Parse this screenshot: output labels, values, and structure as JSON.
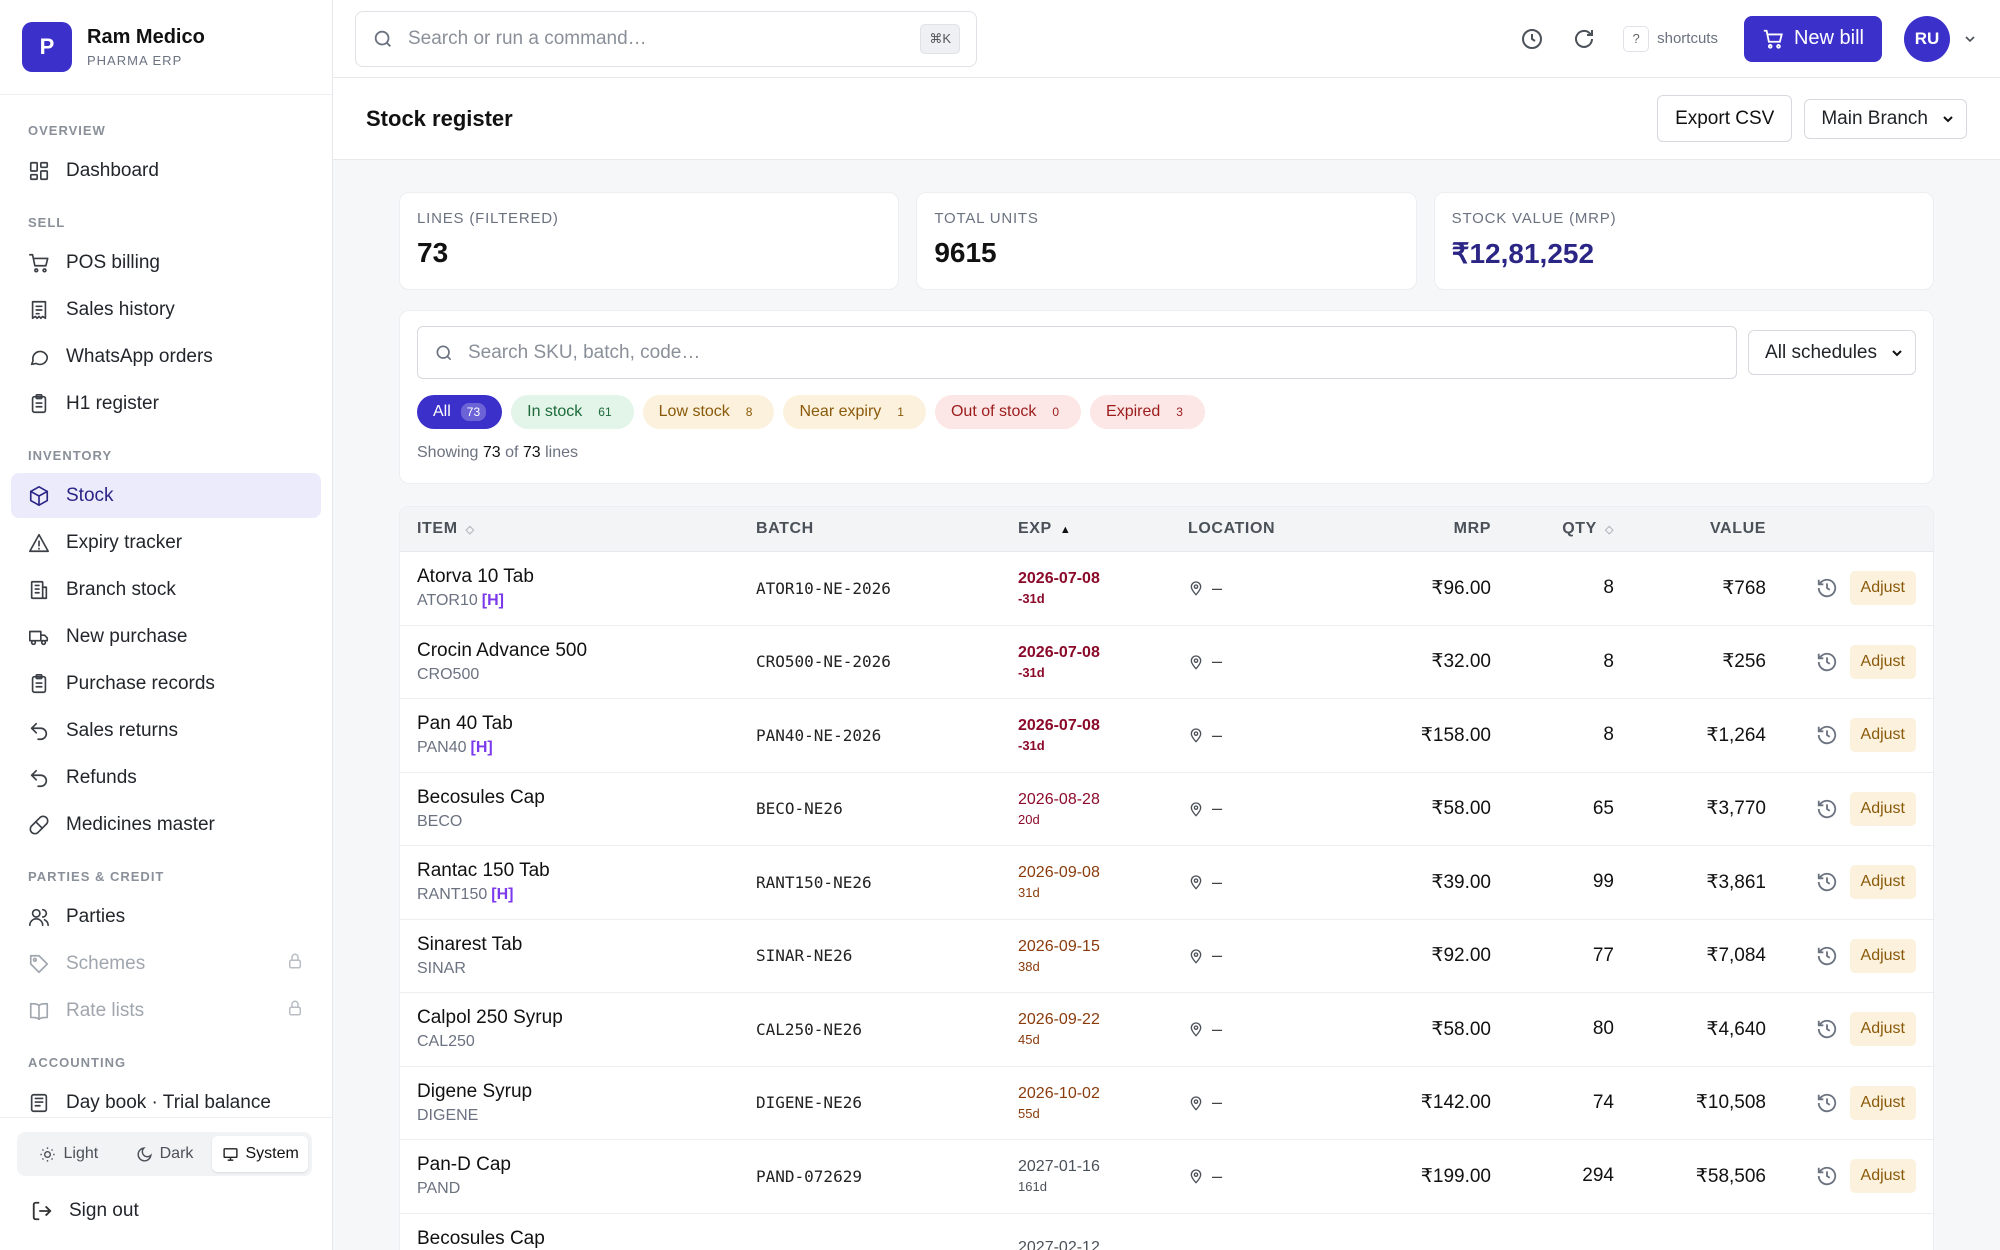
{
  "brand": {
    "logo_letter": "P",
    "name": "Ram Medico",
    "sub": "PHARMA ERP"
  },
  "nav": {
    "sections": [
      {
        "title": "OVERVIEW",
        "items": [
          {
            "label": "Dashboard",
            "icon": "dashboard-icon"
          }
        ]
      },
      {
        "title": "SELL",
        "items": [
          {
            "label": "POS billing",
            "icon": "cart-icon"
          },
          {
            "label": "Sales history",
            "icon": "receipt-icon"
          },
          {
            "label": "WhatsApp orders",
            "icon": "chat-icon"
          },
          {
            "label": "H1 register",
            "icon": "clipboard-icon"
          }
        ]
      },
      {
        "title": "INVENTORY",
        "items": [
          {
            "label": "Stock",
            "icon": "box-icon",
            "active": true
          },
          {
            "label": "Expiry tracker",
            "icon": "warning-icon"
          },
          {
            "label": "Branch stock",
            "icon": "building-icon"
          },
          {
            "label": "New purchase",
            "icon": "truck-icon"
          },
          {
            "label": "Purchase records",
            "icon": "clipboard-icon"
          },
          {
            "label": "Sales returns",
            "icon": "undo-icon"
          },
          {
            "label": "Refunds",
            "icon": "undo-icon"
          },
          {
            "label": "Medicines master",
            "icon": "pill-icon"
          }
        ]
      },
      {
        "title": "PARTIES & CREDIT",
        "items": [
          {
            "label": "Parties",
            "icon": "users-icon"
          },
          {
            "label": "Schemes",
            "icon": "tag-icon",
            "locked": true
          },
          {
            "label": "Rate lists",
            "icon": "book-icon",
            "locked": true
          }
        ]
      },
      {
        "title": "ACCOUNTING",
        "items": [
          {
            "label": "Day book · Trial balance",
            "icon": "ledger-icon"
          }
        ]
      }
    ]
  },
  "theme": {
    "light": "Light",
    "dark": "Dark",
    "system": "System"
  },
  "signout": "Sign out",
  "topbar": {
    "search_placeholder": "Search or run a command…",
    "kbd": "⌘K",
    "shortcut_key": "?",
    "shortcut_label": "shortcuts",
    "new_bill": "New bill",
    "avatar": "RU"
  },
  "page": {
    "title": "Stock register",
    "export": "Export CSV",
    "branch": "Main Branch"
  },
  "stats": [
    {
      "label": "LINES (FILTERED)",
      "value": "73"
    },
    {
      "label": "TOTAL UNITS",
      "value": "9615"
    },
    {
      "label": "STOCK VALUE (MRP)",
      "value": "₹12,81,252"
    }
  ],
  "filters": {
    "search_placeholder": "Search SKU, batch, code…",
    "schedule": "All schedules",
    "chips": [
      {
        "label": "All",
        "count": "73"
      },
      {
        "label": "In stock",
        "count": "61"
      },
      {
        "label": "Low stock",
        "count": "8"
      },
      {
        "label": "Near expiry",
        "count": "1"
      },
      {
        "label": "Out of stock",
        "count": "0"
      },
      {
        "label": "Expired",
        "count": "3"
      }
    ],
    "showing_prefix": "Showing",
    "showing_count": "73",
    "showing_of": "of",
    "showing_total": "73",
    "showing_suffix": "lines"
  },
  "table": {
    "headers": {
      "item": "ITEM",
      "batch": "BATCH",
      "exp": "EXP",
      "location": "LOCATION",
      "mrp": "MRP",
      "qty": "QTY",
      "value": "VALUE"
    },
    "adjust_label": "Adjust",
    "rows": [
      {
        "name": "Atorva 10 Tab",
        "code": "ATOR10",
        "h": "[H]",
        "batch": "ATOR10-NE-2026",
        "exp": "2026-07-08",
        "days": "-31d",
        "tone": "red",
        "loc": "–",
        "mrp": "₹96.00",
        "qty": "8",
        "value": "₹768"
      },
      {
        "name": "Crocin Advance 500",
        "code": "CRO500",
        "h": "",
        "batch": "CRO500-NE-2026",
        "exp": "2026-07-08",
        "days": "-31d",
        "tone": "red",
        "loc": "–",
        "mrp": "₹32.00",
        "qty": "8",
        "value": "₹256"
      },
      {
        "name": "Pan 40 Tab",
        "code": "PAN40",
        "h": "[H]",
        "batch": "PAN40-NE-2026",
        "exp": "2026-07-08",
        "days": "-31d",
        "tone": "red",
        "loc": "–",
        "mrp": "₹158.00",
        "qty": "8",
        "value": "₹1,264"
      },
      {
        "name": "Becosules Cap",
        "code": "BECO",
        "h": "",
        "batch": "BECO-NE26",
        "exp": "2026-08-28",
        "days": "20d",
        "tone": "red-light",
        "loc": "–",
        "mrp": "₹58.00",
        "qty": "65",
        "value": "₹3,770"
      },
      {
        "name": "Rantac 150 Tab",
        "code": "RANT150",
        "h": "[H]",
        "batch": "RANT150-NE26",
        "exp": "2026-09-08",
        "days": "31d",
        "tone": "amber",
        "loc": "–",
        "mrp": "₹39.00",
        "qty": "99",
        "value": "₹3,861"
      },
      {
        "name": "Sinarest Tab",
        "code": "SINAR",
        "h": "",
        "batch": "SINAR-NE26",
        "exp": "2026-09-15",
        "days": "38d",
        "tone": "amber",
        "loc": "–",
        "mrp": "₹92.00",
        "qty": "77",
        "value": "₹7,084"
      },
      {
        "name": "Calpol 250 Syrup",
        "code": "CAL250",
        "h": "",
        "batch": "CAL250-NE26",
        "exp": "2026-09-22",
        "days": "45d",
        "tone": "amber",
        "loc": "–",
        "mrp": "₹58.00",
        "qty": "80",
        "value": "₹4,640"
      },
      {
        "name": "Digene Syrup",
        "code": "DIGENE",
        "h": "",
        "batch": "DIGENE-NE26",
        "exp": "2026-10-02",
        "days": "55d",
        "tone": "amber",
        "loc": "–",
        "mrp": "₹142.00",
        "qty": "74",
        "value": "₹10,508"
      },
      {
        "name": "Pan-D Cap",
        "code": "PAND",
        "h": "",
        "batch": "PAND-072629",
        "exp": "2027-01-16",
        "days": "161d",
        "tone": "normal",
        "loc": "–",
        "mrp": "₹199.00",
        "qty": "294",
        "value": "₹58,506"
      },
      {
        "name": "Becosules Cap",
        "code": "",
        "h": "",
        "batch": "",
        "exp": "2027-02-12",
        "days": "",
        "tone": "normal",
        "loc": "",
        "mrp": "",
        "qty": "",
        "value": ""
      }
    ]
  },
  "colors": {
    "accent": "#3b30c9",
    "active_bg": "#ebebfb",
    "expired_red": "#8b0a2a",
    "amber": "#8a3b0b"
  }
}
